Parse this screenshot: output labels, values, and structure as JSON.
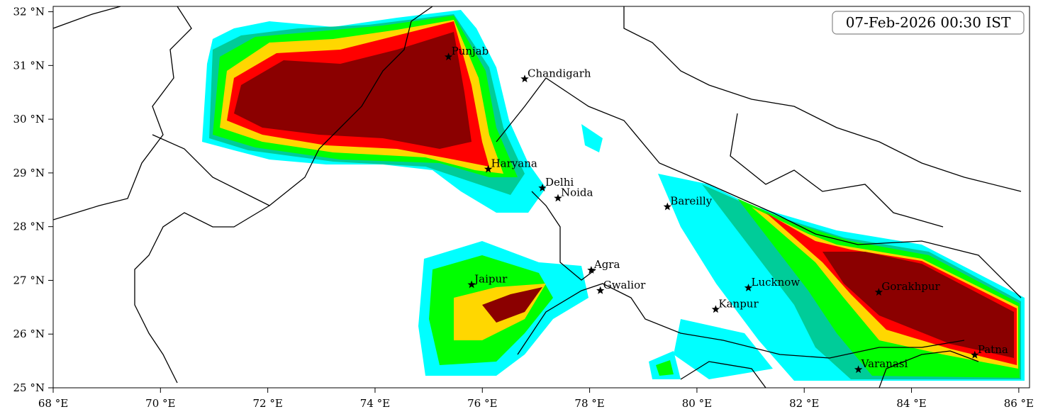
{
  "timestamp": "07-Feb-2026 00:30 IST",
  "map": {
    "xlim": [
      68,
      86.2
    ],
    "ylim": [
      25,
      32.1
    ],
    "xticks": [
      {
        "value": 68,
        "label": "68 °E"
      },
      {
        "value": 70,
        "label": "70 °E"
      },
      {
        "value": 72,
        "label": "72 °E"
      },
      {
        "value": 74,
        "label": "74 °E"
      },
      {
        "value": 76,
        "label": "76 °E"
      },
      {
        "value": 78,
        "label": "78 °E"
      },
      {
        "value": 80,
        "label": "80 °E"
      },
      {
        "value": 82,
        "label": "82 °E"
      },
      {
        "value": 84,
        "label": "84 °E"
      },
      {
        "value": 86,
        "label": "86 °E"
      }
    ],
    "yticks": [
      {
        "value": 25,
        "label": "25 °N"
      },
      {
        "value": 26,
        "label": "26 °N"
      },
      {
        "value": 27,
        "label": "27 °N"
      },
      {
        "value": 28,
        "label": "28 °N"
      },
      {
        "value": 29,
        "label": "29 °N"
      },
      {
        "value": 30,
        "label": "30 °N"
      },
      {
        "value": 31,
        "label": "31 °N"
      },
      {
        "value": 32,
        "label": "32 °N"
      }
    ],
    "cities": [
      {
        "name": "Punjab",
        "lon": 75.37,
        "lat": 31.16
      },
      {
        "name": "Chandigarh",
        "lon": 76.79,
        "lat": 30.75
      },
      {
        "name": "Haryana",
        "lon": 76.11,
        "lat": 29.07
      },
      {
        "name": "Delhi",
        "lon": 77.12,
        "lat": 28.72
      },
      {
        "name": "Noida",
        "lon": 77.41,
        "lat": 28.53
      },
      {
        "name": "Bareilly",
        "lon": 79.45,
        "lat": 28.37
      },
      {
        "name": "Jaipur",
        "lon": 75.8,
        "lat": 26.92
      },
      {
        "name": "Agra",
        "lon": 78.03,
        "lat": 27.19
      },
      {
        "name": "Gwalior",
        "lon": 78.2,
        "lat": 26.81
      },
      {
        "name": "Lucknow",
        "lon": 80.96,
        "lat": 26.86
      },
      {
        "name": "Kanpur",
        "lon": 80.35,
        "lat": 26.46
      },
      {
        "name": "Gorakhpur",
        "lon": 83.39,
        "lat": 26.78
      },
      {
        "name": "Varanasi",
        "lon": 83.01,
        "lat": 25.34
      },
      {
        "name": "Patna",
        "lon": 85.18,
        "lat": 25.61
      }
    ]
  }
}
